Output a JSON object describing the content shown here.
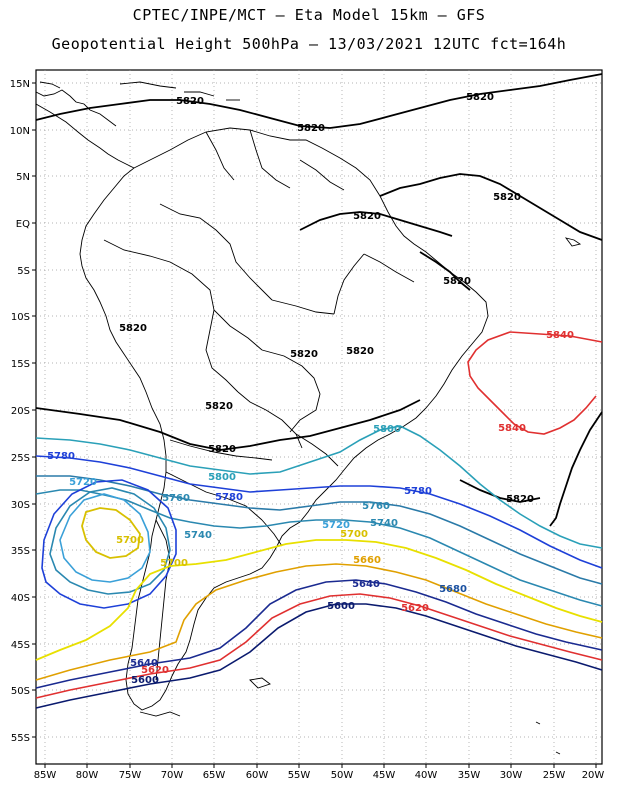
{
  "title_line1": "CPTEC/INPE/MCT –  Eta Model 15km – GFS",
  "title_line2": "Geopotential Height 500hPa – 13/03/2021 12UTC fct=164h",
  "lon_ticks": [
    "85W",
    "80W",
    "75W",
    "70W",
    "65W",
    "60W",
    "55W",
    "50W",
    "45W",
    "40W",
    "35W",
    "30W",
    "25W",
    "20W"
  ],
  "lat_ticks": [
    "15N",
    "10N",
    "5N",
    "EQ",
    "5S",
    "10S",
    "15S",
    "20S",
    "25S",
    "30S",
    "35S",
    "40S",
    "45S",
    "50S",
    "55S"
  ],
  "contour_colors": {
    "5600": "#0a1a6e",
    "5640": "#1a2a90",
    "5660": "#e0a000",
    "5680": "#3070d0",
    "5700": "#f0f000",
    "5720": "#3aa0d8",
    "5740": "#2a88b0",
    "5760": "#1e40d8",
    "5780": "#2a7aa8",
    "5800": "#2aa0b8",
    "5820": "#000000",
    "5840": "#e03030"
  },
  "contour_labels": [
    {
      "text": "5820",
      "color": "#000000"
    },
    {
      "text": "5820",
      "color": "#000000"
    },
    {
      "text": "5820",
      "color": "#000000"
    },
    {
      "text": "5820",
      "color": "#000000"
    },
    {
      "text": "5820",
      "color": "#000000"
    },
    {
      "text": "5820",
      "color": "#000000"
    },
    {
      "text": "5820",
      "color": "#000000"
    },
    {
      "text": "5820",
      "color": "#000000"
    },
    {
      "text": "5820",
      "color": "#000000"
    },
    {
      "text": "5820",
      "color": "#000000"
    },
    {
      "text": "5820",
      "color": "#000000"
    },
    {
      "text": "5820",
      "color": "#000000"
    },
    {
      "text": "5840",
      "color": "#e03030"
    },
    {
      "text": "5840",
      "color": "#e03030"
    },
    {
      "text": "5800",
      "color": "#2aa0b8"
    },
    {
      "text": "5800",
      "color": "#2aa0b8"
    },
    {
      "text": "5780",
      "color": "#1e40d8"
    },
    {
      "text": "5780",
      "color": "#1e40d8"
    },
    {
      "text": "5780",
      "color": "#1e40d8"
    },
    {
      "text": "5760",
      "color": "#2a88b0"
    },
    {
      "text": "5760",
      "color": "#2a88b0"
    },
    {
      "text": "5720",
      "color": "#3aa0d8"
    },
    {
      "text": "5720",
      "color": "#3aa0d8"
    },
    {
      "text": "5740",
      "color": "#2a88b0"
    },
    {
      "text": "5740",
      "color": "#2a88b0"
    },
    {
      "text": "5700",
      "color": "#d8c000"
    },
    {
      "text": "5700",
      "color": "#d8c000"
    },
    {
      "text": "5700",
      "color": "#d8c000"
    },
    {
      "text": "5660",
      "color": "#e0a000"
    },
    {
      "text": "5680",
      "color": "#1a50a0"
    },
    {
      "text": "5640",
      "color": "#1a2a90"
    },
    {
      "text": "5620",
      "color": "#e03030"
    },
    {
      "text": "5600",
      "color": "#0a1a6e"
    },
    {
      "text": "5640",
      "color": "#1a2a90"
    },
    {
      "text": "5620",
      "color": "#e03030"
    },
    {
      "text": "5600",
      "color": "#0a1a6e"
    }
  ]
}
